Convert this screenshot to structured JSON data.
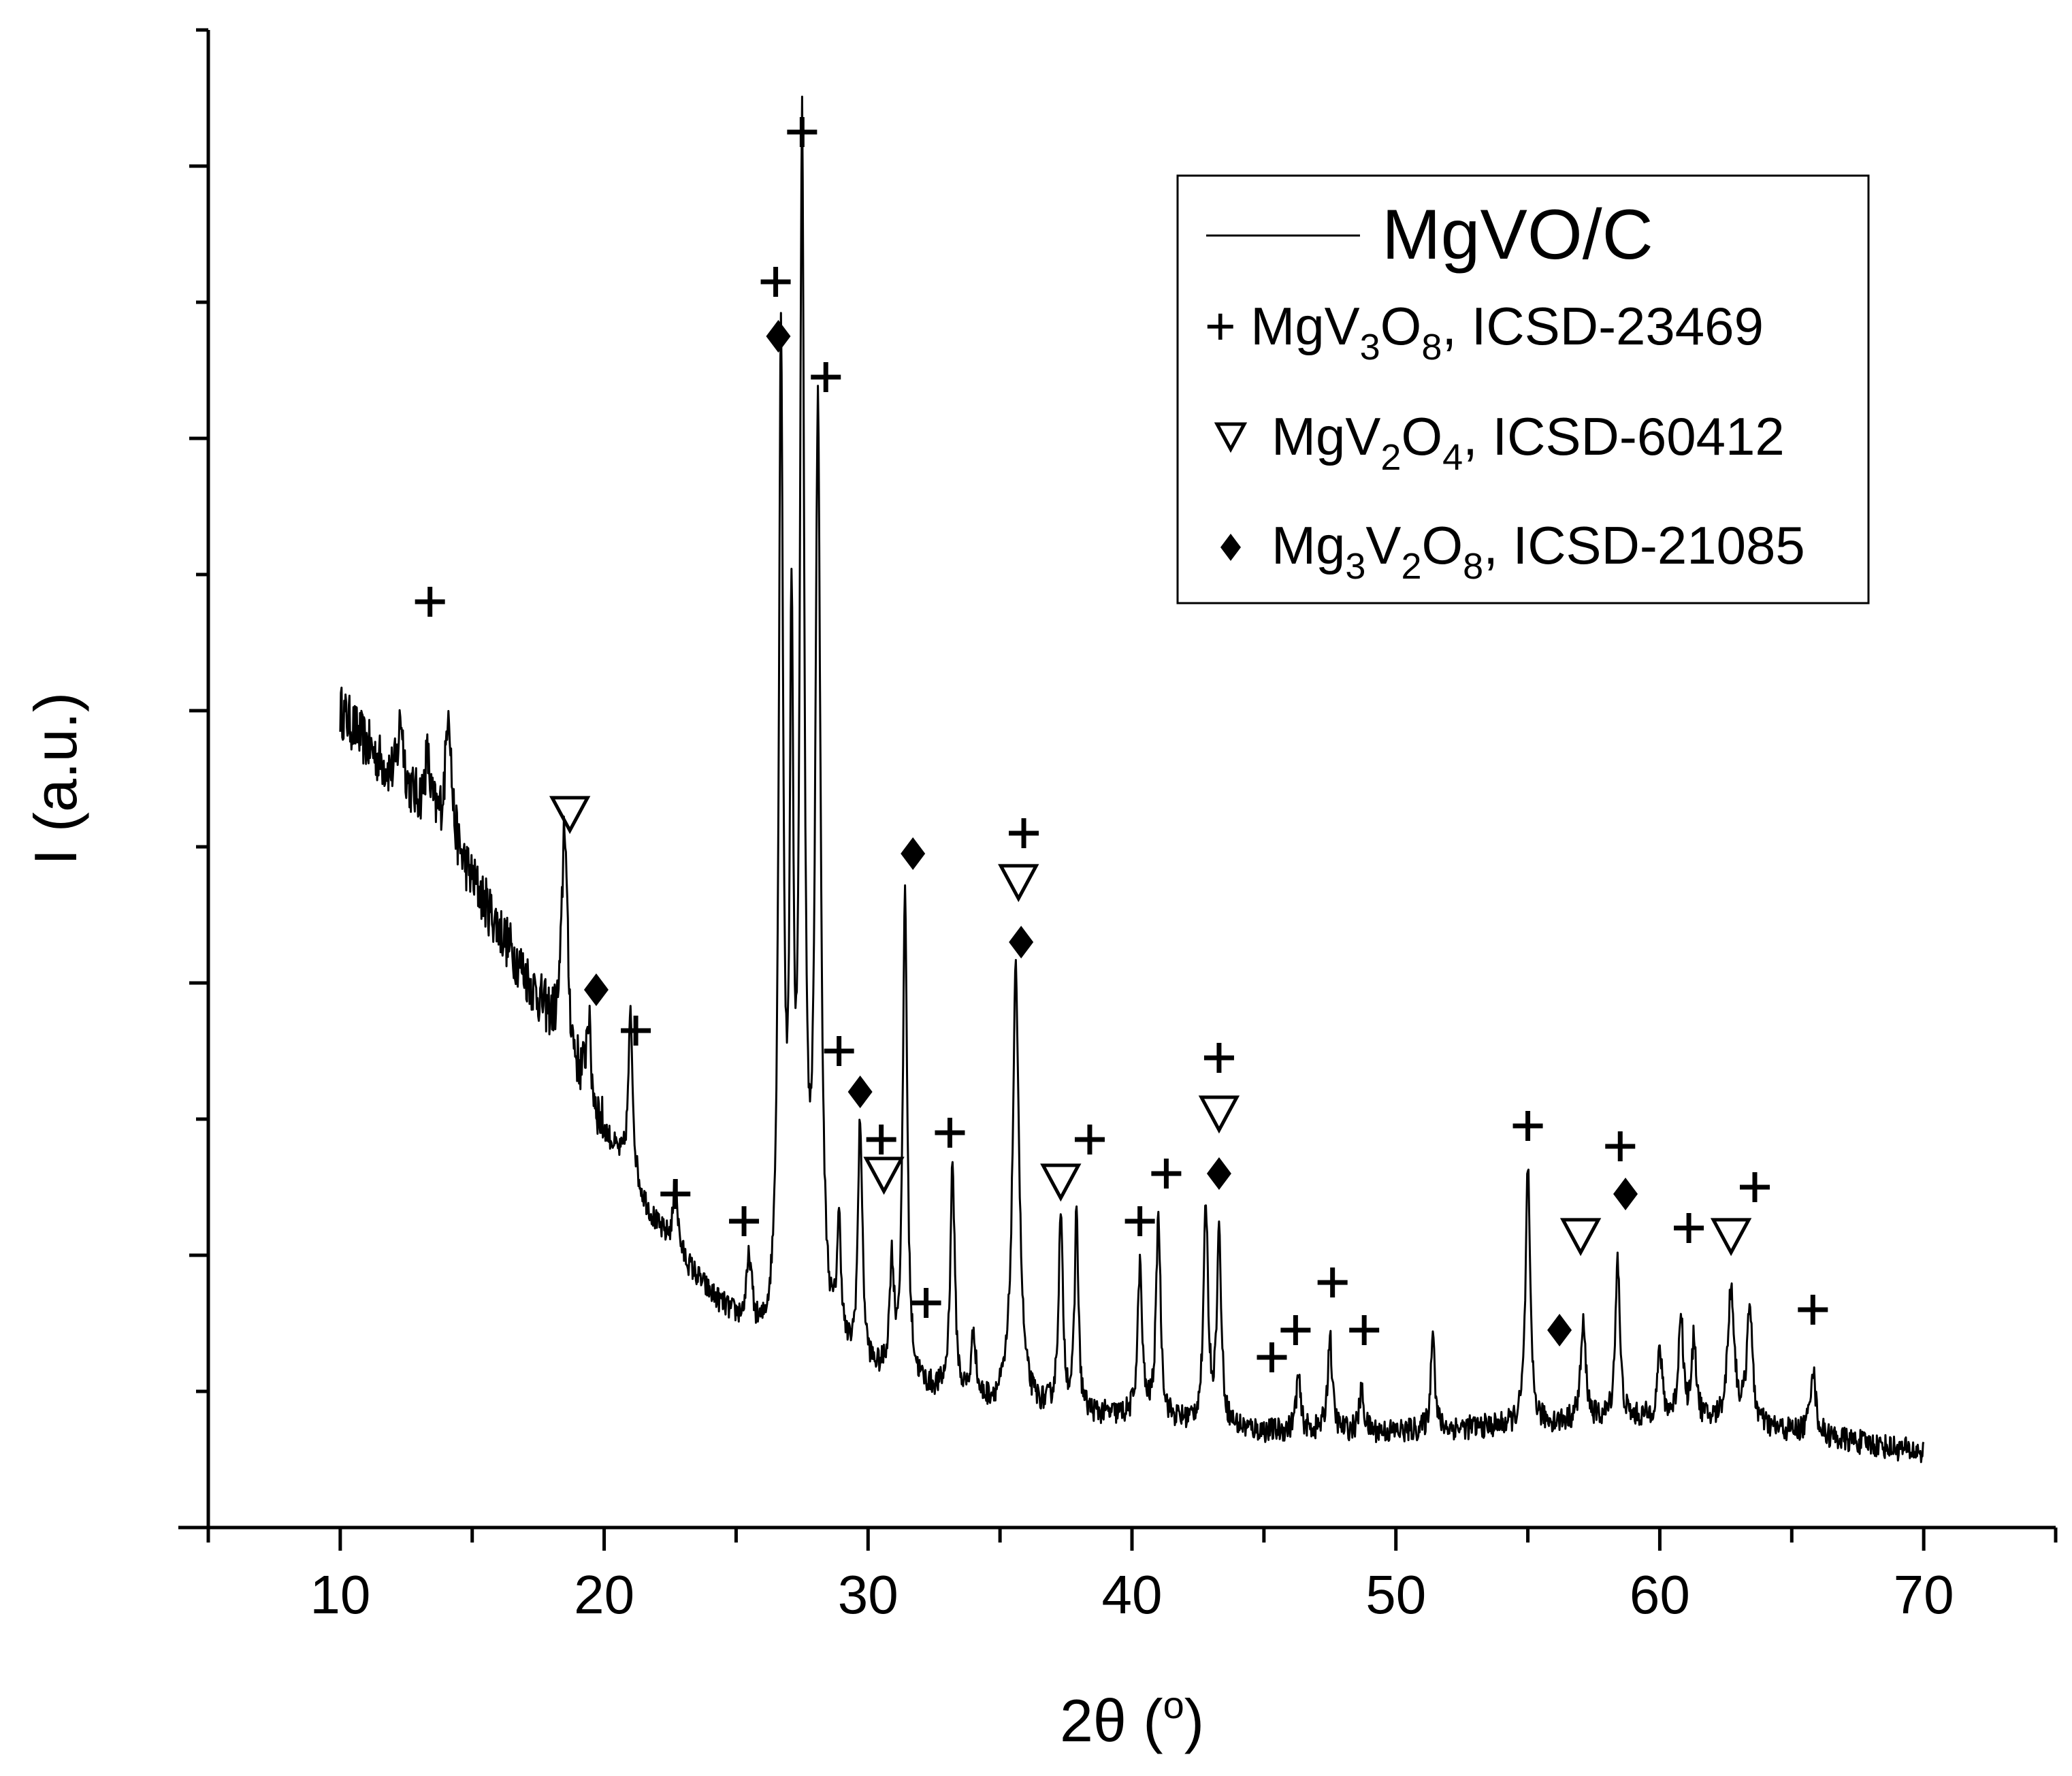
{
  "chart_data": {
    "type": "line",
    "title": "",
    "xlabel": "2θ (°)",
    "xlabel_parts": {
      "main": "2θ (",
      "sup": "o",
      "end": ")"
    },
    "ylabel": "I (a.u.)",
    "xlim": [
      5,
      75
    ],
    "ylim": [
      0,
      110
    ],
    "x_ticks": [
      10,
      20,
      30,
      40,
      50,
      60,
      70
    ],
    "y_ticks": [
      10,
      20,
      30,
      40,
      50,
      60,
      70,
      80,
      90,
      100,
      110
    ],
    "y_tick_labels_shown": false,
    "grid": false,
    "legend_position": "top-right",
    "series": [
      {
        "name": "MgVO/C",
        "color": "#000000",
        "background": [
          [
            10,
            60
          ],
          [
            12,
            55
          ],
          [
            14,
            51
          ],
          [
            16,
            44
          ],
          [
            18,
            37
          ],
          [
            20,
            29
          ],
          [
            22,
            22
          ],
          [
            24,
            17
          ],
          [
            26,
            13
          ],
          [
            28,
            12
          ],
          [
            30,
            11
          ],
          [
            32,
            10
          ],
          [
            34,
            9
          ],
          [
            36,
            8.5
          ],
          [
            40,
            8
          ],
          [
            45,
            7
          ],
          [
            50,
            7
          ],
          [
            55,
            7.5
          ],
          [
            60,
            8
          ],
          [
            65,
            7
          ],
          [
            70,
            5.5
          ]
        ],
        "noise": 0.9,
        "peaks": [
          {
            "x": 12.3,
            "h": 5,
            "w": 0.12
          },
          {
            "x": 13.3,
            "h": 4,
            "w": 0.12
          },
          {
            "x": 14.1,
            "h": 10,
            "w": 0.12
          },
          {
            "x": 18.5,
            "h": 17,
            "w": 0.12
          },
          {
            "x": 19.4,
            "h": 6,
            "w": 0.1
          },
          {
            "x": 21.0,
            "h": 12,
            "w": 0.1
          },
          {
            "x": 22.7,
            "h": 5,
            "w": 0.1
          },
          {
            "x": 25.5,
            "h": 5,
            "w": 0.12
          },
          {
            "x": 26.7,
            "h": 73,
            "w": 0.1
          },
          {
            "x": 27.1,
            "h": 48,
            "w": 0.08
          },
          {
            "x": 27.5,
            "h": 87,
            "w": 0.1
          },
          {
            "x": 28.1,
            "h": 68,
            "w": 0.12
          },
          {
            "x": 28.9,
            "h": 9,
            "w": 0.1
          },
          {
            "x": 29.7,
            "h": 18,
            "w": 0.1
          },
          {
            "x": 30.9,
            "h": 8,
            "w": 0.1
          },
          {
            "x": 31.4,
            "h": 36,
            "w": 0.1
          },
          {
            "x": 33.2,
            "h": 17,
            "w": 0.1
          },
          {
            "x": 34.0,
            "h": 5,
            "w": 0.1
          },
          {
            "x": 35.6,
            "h": 32,
            "w": 0.15
          },
          {
            "x": 37.3,
            "h": 14,
            "w": 0.1
          },
          {
            "x": 37.9,
            "h": 15,
            "w": 0.08
          },
          {
            "x": 40.3,
            "h": 11,
            "w": 0.1
          },
          {
            "x": 41.0,
            "h": 15,
            "w": 0.1
          },
          {
            "x": 42.8,
            "h": 16,
            "w": 0.1
          },
          {
            "x": 43.3,
            "h": 14,
            "w": 0.1
          },
          {
            "x": 46.3,
            "h": 4,
            "w": 0.1
          },
          {
            "x": 47.5,
            "h": 7,
            "w": 0.1
          },
          {
            "x": 48.7,
            "h": 3,
            "w": 0.1
          },
          {
            "x": 51.4,
            "h": 8,
            "w": 0.08
          },
          {
            "x": 55.0,
            "h": 19,
            "w": 0.1
          },
          {
            "x": 57.1,
            "h": 7,
            "w": 0.12
          },
          {
            "x": 58.4,
            "h": 12,
            "w": 0.1
          },
          {
            "x": 60.0,
            "h": 5,
            "w": 0.1
          },
          {
            "x": 60.8,
            "h": 8,
            "w": 0.1
          },
          {
            "x": 61.3,
            "h": 6,
            "w": 0.1
          },
          {
            "x": 62.7,
            "h": 10,
            "w": 0.15
          },
          {
            "x": 63.4,
            "h": 9,
            "w": 0.12
          },
          {
            "x": 65.8,
            "h": 5,
            "w": 0.12
          }
        ]
      }
    ],
    "legend": [
      {
        "symbol": "line",
        "text": "MgVO/C"
      },
      {
        "symbol": "plus",
        "parts": [
          {
            "t": "+ MgV"
          },
          {
            "s": "3"
          },
          {
            "t": "O"
          },
          {
            "s": "8"
          },
          {
            "t": ", ICSD-23469"
          }
        ]
      },
      {
        "symbol": "triangle",
        "parts": [
          {
            "t": "MgV"
          },
          {
            "s": "2"
          },
          {
            "t": "O"
          },
          {
            "s": "4"
          },
          {
            "t": ", ICSD-60412"
          }
        ]
      },
      {
        "symbol": "diamond",
        "parts": [
          {
            "t": "Mg"
          },
          {
            "s": "3"
          },
          {
            "t": "V"
          },
          {
            "s": "2"
          },
          {
            "t": "O"
          },
          {
            "s": "8"
          },
          {
            "t": ", ICSD-21085"
          }
        ]
      }
    ],
    "markers": [
      {
        "phase": "MgV3O8",
        "symbol": "plus",
        "x": 13.4,
        "y": 68
      },
      {
        "phase": "MgV3O8",
        "symbol": "plus",
        "x": 21.2,
        "y": 36.5
      },
      {
        "phase": "MgV3O8",
        "symbol": "plus",
        "x": 22.7,
        "y": 24.5
      },
      {
        "phase": "MgV3O8",
        "symbol": "plus",
        "x": 25.3,
        "y": 22.5
      },
      {
        "phase": "MgV3O8",
        "symbol": "plus",
        "x": 26.5,
        "y": 91.5
      },
      {
        "phase": "MgV3O8",
        "symbol": "plus",
        "x": 27.5,
        "y": 102.5
      },
      {
        "phase": "MgV3O8",
        "symbol": "plus",
        "x": 28.4,
        "y": 84.5
      },
      {
        "phase": "MgV3O8",
        "symbol": "plus",
        "x": 28.9,
        "y": 35
      },
      {
        "phase": "MgV3O8",
        "symbol": "plus",
        "x": 30.5,
        "y": 28.5
      },
      {
        "phase": "MgV3O8",
        "symbol": "plus",
        "x": 32.2,
        "y": 16.5
      },
      {
        "phase": "MgV3O8",
        "symbol": "plus",
        "x": 33.1,
        "y": 29
      },
      {
        "phase": "MgV3O8",
        "symbol": "plus",
        "x": 35.9,
        "y": 51
      },
      {
        "phase": "MgV3O8",
        "symbol": "plus",
        "x": 38.4,
        "y": 28.5
      },
      {
        "phase": "MgV3O8",
        "symbol": "plus",
        "x": 40.3,
        "y": 22.5
      },
      {
        "phase": "MgV3O8",
        "symbol": "plus",
        "x": 41.3,
        "y": 26
      },
      {
        "phase": "MgV3O8",
        "symbol": "plus",
        "x": 43.3,
        "y": 34.5
      },
      {
        "phase": "MgV3O8",
        "symbol": "plus",
        "x": 45.3,
        "y": 12.5
      },
      {
        "phase": "MgV3O8",
        "symbol": "plus",
        "x": 46.2,
        "y": 14.5
      },
      {
        "phase": "MgV3O8",
        "symbol": "plus",
        "x": 47.6,
        "y": 18
      },
      {
        "phase": "MgV3O8",
        "symbol": "plus",
        "x": 48.8,
        "y": 14.5
      },
      {
        "phase": "MgV3O8",
        "symbol": "plus",
        "x": 55.0,
        "y": 29.5
      },
      {
        "phase": "MgV3O8",
        "symbol": "plus",
        "x": 58.5,
        "y": 28
      },
      {
        "phase": "MgV3O8",
        "symbol": "plus",
        "x": 61.1,
        "y": 22
      },
      {
        "phase": "MgV3O8",
        "symbol": "plus",
        "x": 63.6,
        "y": 25
      },
      {
        "phase": "MgV3O8",
        "symbol": "plus",
        "x": 65.8,
        "y": 16
      },
      {
        "phase": "MgV2O4",
        "symbol": "triangle",
        "x": 18.7,
        "y": 52.5
      },
      {
        "phase": "MgV2O4",
        "symbol": "triangle",
        "x": 30.6,
        "y": 26
      },
      {
        "phase": "MgV2O4",
        "symbol": "triangle",
        "x": 35.7,
        "y": 47.5
      },
      {
        "phase": "MgV2O4",
        "symbol": "triangle",
        "x": 37.3,
        "y": 25.5
      },
      {
        "phase": "MgV2O4",
        "symbol": "triangle",
        "x": 43.3,
        "y": 30.5
      },
      {
        "phase": "MgV2O4",
        "symbol": "triangle",
        "x": 57.0,
        "y": 21.5
      },
      {
        "phase": "MgV2O4",
        "symbol": "triangle",
        "x": 62.7,
        "y": 21.5
      },
      {
        "phase": "MgV3O8_Mg3V2O8",
        "symbol": "diamond",
        "x": 26.6,
        "y": 87.5
      },
      {
        "phase": "Mg3V2O8",
        "symbol": "diamond",
        "x": 19.7,
        "y": 39.5
      },
      {
        "phase": "Mg3V2O8",
        "symbol": "diamond",
        "x": 29.7,
        "y": 32
      },
      {
        "phase": "Mg3V2O8",
        "symbol": "diamond",
        "x": 31.7,
        "y": 49.5
      },
      {
        "phase": "Mg3V2O8",
        "symbol": "diamond",
        "x": 35.8,
        "y": 43
      },
      {
        "phase": "Mg3V2O8",
        "symbol": "diamond",
        "x": 43.3,
        "y": 26
      },
      {
        "phase": "Mg3V2O8",
        "symbol": "diamond",
        "x": 56.2,
        "y": 14.5
      },
      {
        "phase": "Mg3V2O8",
        "symbol": "diamond",
        "x": 58.7,
        "y": 24.5
      }
    ]
  }
}
